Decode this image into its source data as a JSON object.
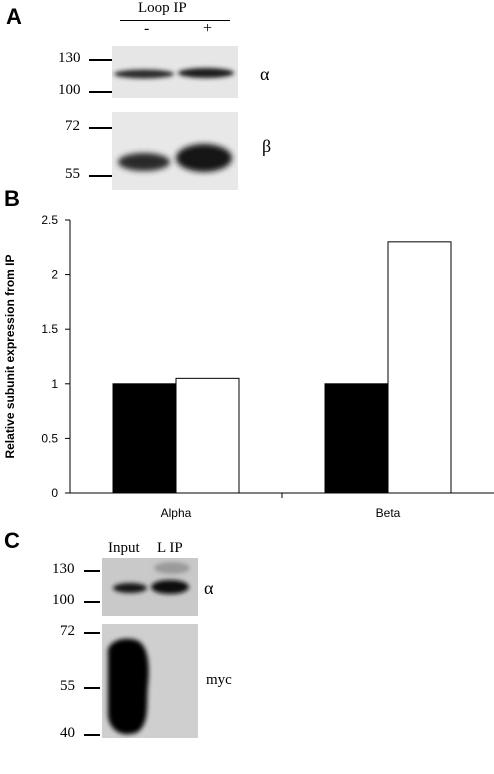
{
  "panel_a": {
    "label": "A",
    "header": "Loop IP",
    "lanes": [
      "-",
      "+"
    ],
    "mw_top": [
      "130",
      "100"
    ],
    "mw_bottom": [
      "72",
      "55"
    ],
    "band_labels": [
      "α",
      "β"
    ]
  },
  "panel_b": {
    "label": "B"
  },
  "panel_c": {
    "label": "C",
    "lanes": [
      "Input",
      "L IP"
    ],
    "mw_top": [
      "130",
      "100"
    ],
    "mw_bottom": [
      "72",
      "55",
      "40"
    ],
    "band_labels": [
      "α",
      "myc"
    ]
  },
  "chart_data": {
    "type": "bar",
    "categories": [
      "Alpha",
      "Beta"
    ],
    "series": [
      {
        "values": [
          1.0,
          1.0
        ],
        "color": "#000000"
      },
      {
        "values": [
          1.05,
          2.3
        ],
        "color": "#ffffff"
      }
    ],
    "ylabel": "Relative subunit expression from IP",
    "xlabel": "",
    "ylim": [
      0,
      2.5
    ],
    "yticks": [
      "0",
      "0.5",
      "1",
      "1.5",
      "2",
      "2.5"
    ],
    "grid": false
  }
}
